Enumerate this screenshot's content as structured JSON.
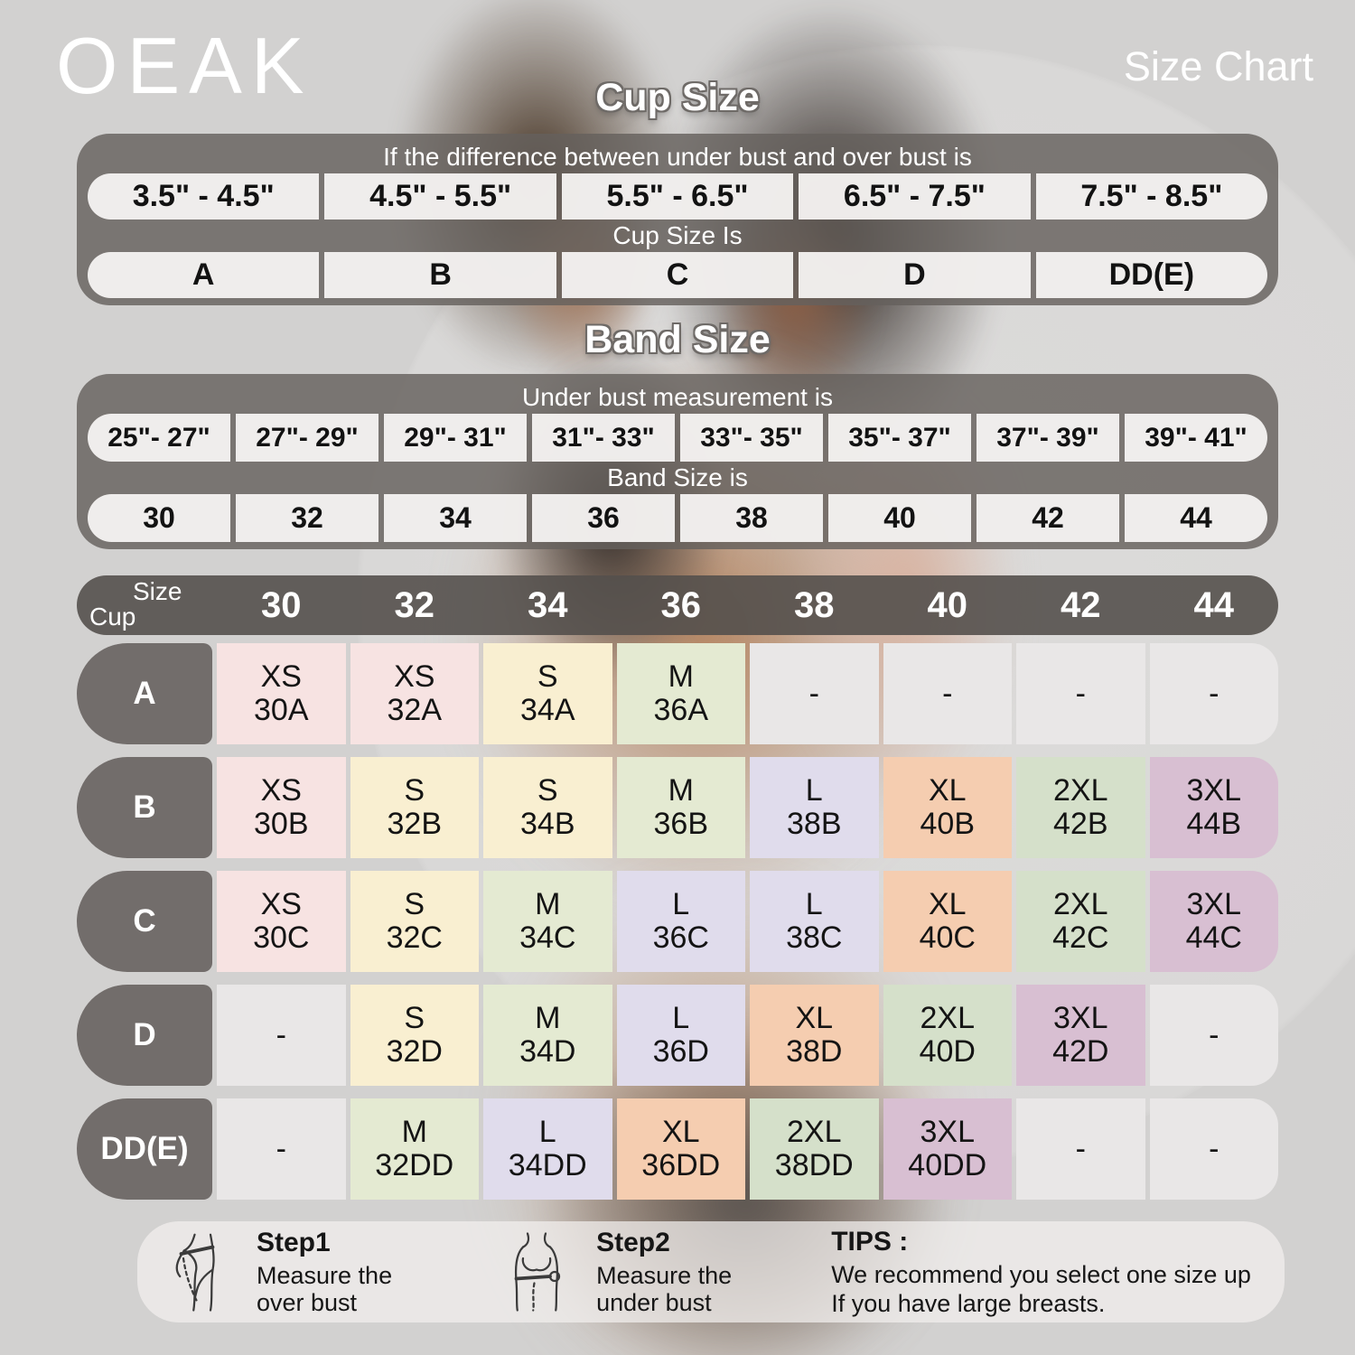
{
  "brand": "OEAK",
  "page_title": "Size Chart",
  "cup_section": {
    "title": "Cup Size",
    "caption1": "If the  difference between under bust and over bust is",
    "ranges": [
      "3.5\" -  4.5\"",
      "4.5\" -  5.5\"",
      "5.5\" -  6.5\"",
      "6.5\" -  7.5\"",
      "7.5\" -  8.5\""
    ],
    "caption2": "Cup Size Is",
    "cups": [
      "A",
      "B",
      "C",
      "D",
      "DD(E)"
    ]
  },
  "band_section": {
    "title": "Band Size",
    "caption1": "Under bust measurement is",
    "ranges": [
      "25\"- 27\"",
      "27\"- 29\"",
      "29\"- 31\"",
      "31\"- 33\"",
      "33\"- 35\"",
      "35\"- 37\"",
      "37\"- 39\"",
      "39\"- 41\""
    ],
    "caption2": "Band Size is",
    "bands": [
      "30",
      "32",
      "34",
      "36",
      "38",
      "40",
      "42",
      "44"
    ]
  },
  "matrix": {
    "corner_top": "Size",
    "corner_bottom": "Cup",
    "columns": [
      "30",
      "32",
      "34",
      "36",
      "38",
      "40",
      "42",
      "44"
    ],
    "rows": [
      {
        "label": "A",
        "cells": [
          {
            "size": "XS",
            "code": "30A",
            "color": "pink"
          },
          {
            "size": "XS",
            "code": "32A",
            "color": "pink"
          },
          {
            "size": "S",
            "code": "34A",
            "color": "cream"
          },
          {
            "size": "M",
            "code": "36A",
            "color": "green"
          },
          {
            "dash": "-"
          },
          {
            "dash": "-"
          },
          {
            "dash": "-"
          },
          {
            "dash": "-"
          }
        ]
      },
      {
        "label": "B",
        "cells": [
          {
            "size": "XS",
            "code": "30B",
            "color": "pink"
          },
          {
            "size": "S",
            "code": "32B",
            "color": "cream"
          },
          {
            "size": "S",
            "code": "34B",
            "color": "cream"
          },
          {
            "size": "M",
            "code": "36B",
            "color": "green"
          },
          {
            "size": "L",
            "code": "38B",
            "color": "lavender"
          },
          {
            "size": "XL",
            "code": "40B",
            "color": "peach"
          },
          {
            "size": "2XL",
            "code": "42B",
            "color": "sage"
          },
          {
            "size": "3XL",
            "code": "44B",
            "color": "mauve"
          }
        ]
      },
      {
        "label": "C",
        "cells": [
          {
            "size": "XS",
            "code": "30C",
            "color": "pink"
          },
          {
            "size": "S",
            "code": "32C",
            "color": "cream"
          },
          {
            "size": "M",
            "code": "34C",
            "color": "green"
          },
          {
            "size": "L",
            "code": "36C",
            "color": "lavender"
          },
          {
            "size": "L",
            "code": "38C",
            "color": "lavender"
          },
          {
            "size": "XL",
            "code": "40C",
            "color": "peach"
          },
          {
            "size": "2XL",
            "code": "42C",
            "color": "sage"
          },
          {
            "size": "3XL",
            "code": "44C",
            "color": "mauve"
          }
        ]
      },
      {
        "label": "D",
        "cells": [
          {
            "dash": "-"
          },
          {
            "size": "S",
            "code": "32D",
            "color": "cream"
          },
          {
            "size": "M",
            "code": "34D",
            "color": "green"
          },
          {
            "size": "L",
            "code": "36D",
            "color": "lavender"
          },
          {
            "size": "XL",
            "code": "38D",
            "color": "peach"
          },
          {
            "size": "2XL",
            "code": "40D",
            "color": "sage"
          },
          {
            "size": "3XL",
            "code": "42D",
            "color": "mauve"
          },
          {
            "dash": "-"
          }
        ]
      },
      {
        "label": "DD(E)",
        "cells": [
          {
            "dash": "-"
          },
          {
            "size": "M",
            "code": "32DD",
            "color": "green"
          },
          {
            "size": "L",
            "code": "34DD",
            "color": "lavender"
          },
          {
            "size": "XL",
            "code": "36DD",
            "color": "peach"
          },
          {
            "size": "2XL",
            "code": "38DD",
            "color": "sage"
          },
          {
            "size": "3XL",
            "code": "40DD",
            "color": "mauve"
          },
          {
            "dash": "-"
          },
          {
            "dash": "-"
          }
        ]
      }
    ]
  },
  "footer": {
    "step1_title": "Step1",
    "step1_line1": "Measure the",
    "step1_line2": "over bust",
    "step2_title": "Step2",
    "step2_line1": "Measure the",
    "step2_line2": "under bust",
    "tips_title": "TIPS :",
    "tips_line1": "We recommend you select one size up",
    "tips_line2": "If you have large breasts."
  },
  "colors": {
    "pink": "#f7e3e2",
    "cream": "#f9efd1",
    "green": "#e4ead2",
    "lavender": "#e0dcec",
    "peach": "#f5cdb0",
    "sage": "#d5e0ca",
    "mauve": "#d8bfd2",
    "gray": "#e9e7e7",
    "dark_bar": "#55504d",
    "section_bar": "#65605d"
  }
}
